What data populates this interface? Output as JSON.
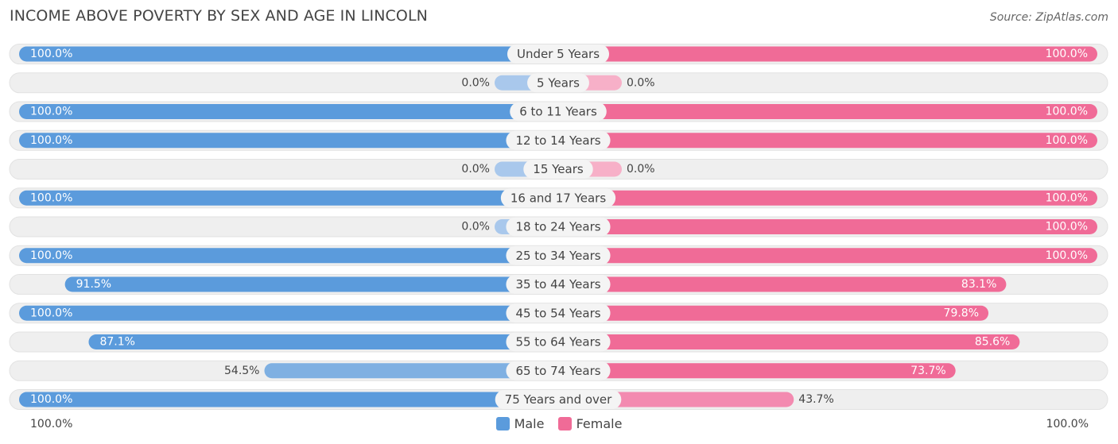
{
  "header": {
    "title": "INCOME ABOVE POVERTY BY SEX AND AGE IN LINCOLN",
    "source": "Source: ZipAtlas.com"
  },
  "legend": {
    "male_label": "Male",
    "female_label": "Female"
  },
  "axis": {
    "left_label": "100.0%",
    "right_label": "100.0%"
  },
  "colors": {
    "male_full": "#5b9bdc",
    "male_light": "#a9c8ec",
    "female_full": "#f06b97",
    "female_light": "#f7b0c8",
    "row_bg": "#efefef"
  },
  "chart_data": {
    "type": "bar",
    "title": "INCOME ABOVE POVERTY BY SEX AND AGE IN LINCOLN",
    "orientation": "horizontal-diverging",
    "categories": [
      "Under 5 Years",
      "5 Years",
      "6 to 11 Years",
      "12 to 14 Years",
      "15 Years",
      "16 and 17 Years",
      "18 to 24 Years",
      "25 to 34 Years",
      "35 to 44 Years",
      "45 to 54 Years",
      "55 to 64 Years",
      "65 to 74 Years",
      "75 Years and over"
    ],
    "series": [
      {
        "name": "Male",
        "values": [
          100.0,
          0.0,
          100.0,
          100.0,
          0.0,
          100.0,
          0.0,
          100.0,
          91.5,
          100.0,
          87.1,
          54.5,
          100.0
        ],
        "labels": [
          "100.0%",
          "0.0%",
          "100.0%",
          "100.0%",
          "0.0%",
          "100.0%",
          "0.0%",
          "100.0%",
          "91.5%",
          "100.0%",
          "87.1%",
          "54.5%",
          "100.0%"
        ]
      },
      {
        "name": "Female",
        "values": [
          100.0,
          0.0,
          100.0,
          100.0,
          0.0,
          100.0,
          100.0,
          100.0,
          83.1,
          79.8,
          85.6,
          73.7,
          43.7
        ],
        "labels": [
          "100.0%",
          "0.0%",
          "100.0%",
          "100.0%",
          "0.0%",
          "100.0%",
          "100.0%",
          "100.0%",
          "83.1%",
          "79.8%",
          "85.6%",
          "73.7%",
          "43.7%"
        ]
      }
    ],
    "xlim": [
      0,
      100
    ],
    "unit": "%",
    "legend_position": "bottom-center"
  }
}
